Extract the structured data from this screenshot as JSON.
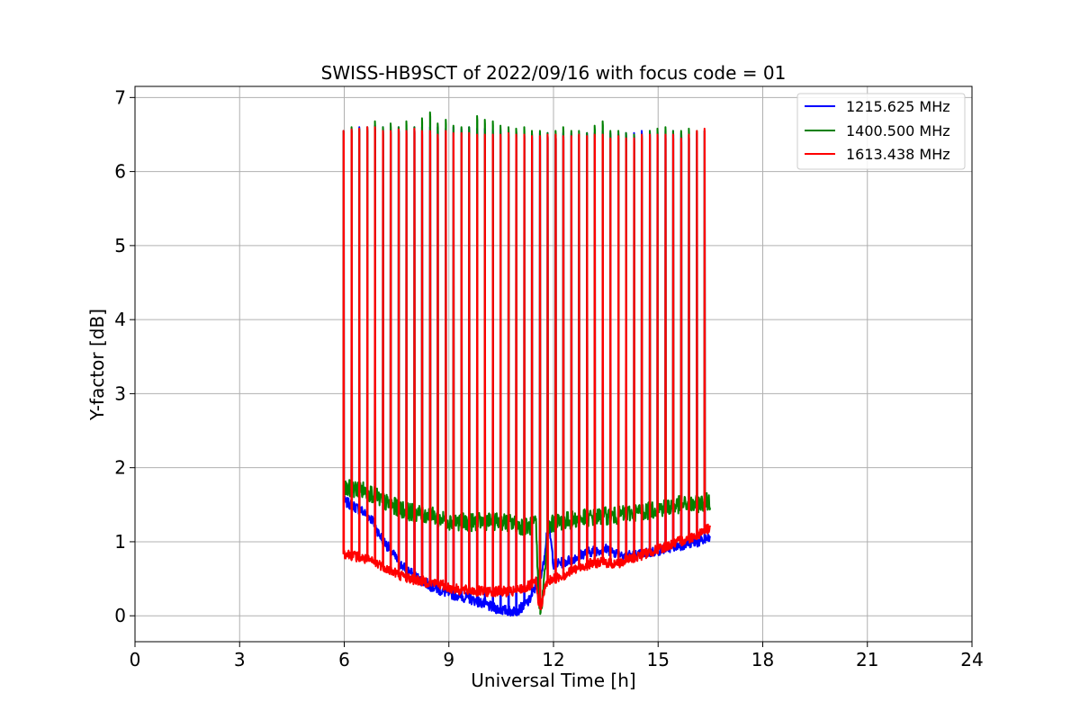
{
  "chart_data": {
    "type": "line",
    "title": "SWISS-HB9SCT of 2022/09/16 with focus code = 01",
    "xlabel": "Universal Time [h]",
    "ylabel": "Y-factor [dB]",
    "xlim": [
      0,
      24
    ],
    "ylim": [
      -0.35,
      7.15
    ],
    "xticks": [
      0,
      3,
      6,
      9,
      12,
      15,
      18,
      21,
      24
    ],
    "yticks": [
      0,
      1,
      2,
      3,
      4,
      5,
      6,
      7
    ],
    "grid": true,
    "legend_position": "top-right",
    "spike_times": [
      5.98,
      6.21,
      6.43,
      6.66,
      6.88,
      7.11,
      7.33,
      7.56,
      7.78,
      8.01,
      8.23,
      8.46,
      8.68,
      8.91,
      9.13,
      9.36,
      9.58,
      9.81,
      10.03,
      10.26,
      10.48,
      10.71,
      10.93,
      11.16,
      11.38,
      11.61,
      11.83,
      12.06,
      12.28,
      12.51,
      12.73,
      12.96,
      13.18,
      13.41,
      13.63,
      13.86,
      14.08,
      14.31,
      14.53,
      14.76,
      14.98,
      15.21,
      15.43,
      15.66,
      15.88,
      16.11,
      16.33
    ],
    "series": [
      {
        "name": "1215.625 MHz",
        "color": "#0000ff",
        "x": [
          5.98,
          6.2,
          6.5,
          6.8,
          7.0,
          7.3,
          7.6,
          7.9,
          8.2,
          8.5,
          8.8,
          9.0,
          9.3,
          9.6,
          9.9,
          10.2,
          10.5,
          10.8,
          11.0,
          11.3,
          11.5,
          11.7,
          11.85,
          12.0,
          12.3,
          12.6,
          12.9,
          13.2,
          13.5,
          13.8,
          14.1,
          14.4,
          14.7,
          15.0,
          15.3,
          15.6,
          15.9,
          16.2,
          16.5
        ],
        "y": [
          1.55,
          1.5,
          1.42,
          1.3,
          1.1,
          0.9,
          0.7,
          0.58,
          0.48,
          0.4,
          0.33,
          0.3,
          0.27,
          0.23,
          0.18,
          0.12,
          0.08,
          0.06,
          0.08,
          0.2,
          0.4,
          0.65,
          1.3,
          0.7,
          0.72,
          0.78,
          0.85,
          0.88,
          0.9,
          0.85,
          0.82,
          0.82,
          0.85,
          0.88,
          0.92,
          0.95,
          0.98,
          1.0,
          1.05
        ],
        "noise": 0.07,
        "peaks": [
          6.55,
          6.58,
          6.6,
          6.6,
          6.62,
          6.6,
          6.58,
          6.6,
          6.6,
          6.6,
          6.6,
          6.6,
          6.6,
          6.58,
          6.6,
          6.58,
          6.6,
          6.58,
          6.58,
          6.56,
          6.56,
          6.55,
          6.55,
          6.53,
          6.52,
          6.52,
          6.52,
          6.5,
          6.52,
          6.52,
          6.5,
          6.52,
          6.52,
          6.55,
          6.52,
          6.5,
          6.52,
          6.52,
          6.55,
          6.55,
          6.55,
          6.55,
          6.55,
          6.52,
          6.5,
          6.52,
          6.55
        ]
      },
      {
        "name": "1400.500 MHz",
        "color": "#008000",
        "x": [
          5.98,
          6.2,
          6.5,
          6.8,
          7.0,
          7.3,
          7.6,
          7.9,
          8.2,
          8.5,
          8.8,
          9.0,
          9.3,
          9.6,
          9.9,
          10.2,
          10.5,
          10.8,
          11.0,
          11.3,
          11.5,
          11.55,
          11.62,
          11.72,
          11.85,
          12.0,
          12.3,
          12.6,
          12.9,
          13.2,
          13.5,
          13.8,
          14.1,
          14.4,
          14.7,
          15.0,
          15.3,
          15.6,
          15.9,
          16.2,
          16.5
        ],
        "y": [
          1.7,
          1.72,
          1.7,
          1.65,
          1.58,
          1.5,
          1.45,
          1.4,
          1.38,
          1.35,
          1.3,
          1.28,
          1.27,
          1.26,
          1.27,
          1.28,
          1.27,
          1.25,
          1.22,
          1.2,
          1.25,
          0.5,
          0.05,
          0.4,
          1.2,
          1.25,
          1.28,
          1.3,
          1.32,
          1.33,
          1.35,
          1.35,
          1.38,
          1.4,
          1.42,
          1.45,
          1.47,
          1.5,
          1.5,
          1.52,
          1.55
        ],
        "noise": 0.12,
        "peaks": [
          6.55,
          6.6,
          6.58,
          6.6,
          6.68,
          6.6,
          6.65,
          6.6,
          6.68,
          6.6,
          6.72,
          6.8,
          6.65,
          6.7,
          6.62,
          6.6,
          6.6,
          6.75,
          6.7,
          6.68,
          6.62,
          6.6,
          6.58,
          6.6,
          6.55,
          6.55,
          6.52,
          6.55,
          6.6,
          6.55,
          6.55,
          6.52,
          6.62,
          6.68,
          6.55,
          6.55,
          6.52,
          6.5,
          6.5,
          6.55,
          6.58,
          6.6,
          6.55,
          6.55,
          6.58,
          6.55,
          6.55
        ]
      },
      {
        "name": "1613.438 MHz",
        "color": "#ff0000",
        "x": [
          5.98,
          6.2,
          6.5,
          6.8,
          7.0,
          7.3,
          7.6,
          7.9,
          8.2,
          8.5,
          8.8,
          9.0,
          9.3,
          9.6,
          9.9,
          10.2,
          10.5,
          10.8,
          11.0,
          11.3,
          11.5,
          11.55,
          11.62,
          11.8,
          12.0,
          12.3,
          12.6,
          12.9,
          13.2,
          13.5,
          13.8,
          14.1,
          14.4,
          14.7,
          15.0,
          15.3,
          15.6,
          15.9,
          16.2,
          16.5
        ],
        "y": [
          0.85,
          0.82,
          0.78,
          0.73,
          0.7,
          0.62,
          0.55,
          0.5,
          0.47,
          0.45,
          0.42,
          0.38,
          0.35,
          0.34,
          0.33,
          0.33,
          0.33,
          0.32,
          0.35,
          0.4,
          0.45,
          0.25,
          0.1,
          0.45,
          0.5,
          0.55,
          0.62,
          0.68,
          0.72,
          0.72,
          0.7,
          0.75,
          0.8,
          0.85,
          0.9,
          0.95,
          1.0,
          1.05,
          1.12,
          1.2
        ],
        "noise": 0.07,
        "peaks": [
          6.55,
          6.57,
          6.58,
          6.6,
          6.6,
          6.55,
          6.55,
          6.57,
          6.55,
          6.58,
          6.55,
          6.55,
          6.5,
          6.55,
          6.52,
          6.52,
          6.52,
          6.5,
          6.5,
          6.5,
          6.5,
          6.52,
          6.5,
          6.5,
          6.48,
          6.48,
          6.5,
          6.5,
          6.48,
          6.48,
          6.5,
          6.48,
          6.5,
          6.5,
          6.45,
          6.48,
          6.45,
          6.45,
          6.5,
          6.5,
          6.5,
          6.5,
          6.5,
          6.45,
          6.5,
          6.55,
          6.58
        ]
      }
    ]
  }
}
